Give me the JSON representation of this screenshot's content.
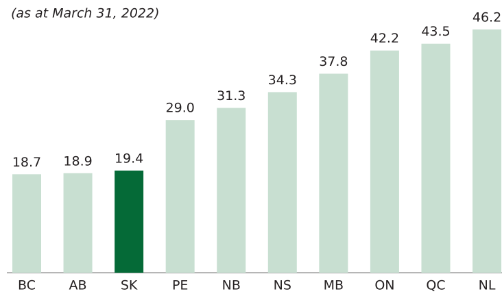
{
  "chart_data": {
    "type": "bar",
    "subtitle": "(as at March 31, 2022)",
    "categories": [
      "BC",
      "AB",
      "SK",
      "PE",
      "NB",
      "NS",
      "MB",
      "ON",
      "QC",
      "NL"
    ],
    "values": [
      18.7,
      18.9,
      19.4,
      29.0,
      31.3,
      34.3,
      37.8,
      42.2,
      43.5,
      46.2
    ],
    "value_labels": [
      "18.7",
      "18.9",
      "19.4",
      "29.0",
      "31.3",
      "34.3",
      "37.8",
      "42.2",
      "43.5",
      "46.2"
    ],
    "colors": [
      "#c8dfd1",
      "#c8dfd1",
      "#056a37",
      "#c8dfd1",
      "#c8dfd1",
      "#c8dfd1",
      "#c8dfd1",
      "#c8dfd1",
      "#c8dfd1",
      "#c8dfd1"
    ]
  }
}
